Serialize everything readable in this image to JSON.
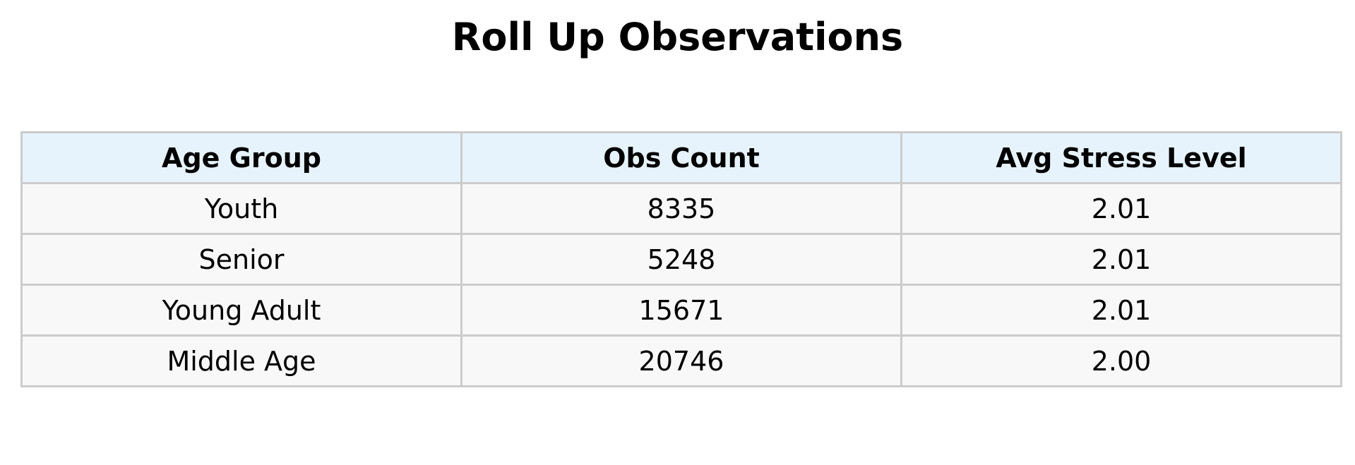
{
  "chart_data": {
    "type": "table",
    "title": "Roll Up Observations",
    "columns": [
      "Age Group",
      "Obs Count",
      "Avg Stress Level"
    ],
    "rows": [
      [
        "Youth",
        "8335",
        "2.01"
      ],
      [
        "Senior",
        "5248",
        "2.01"
      ],
      [
        "Young Adult",
        "15671",
        "2.01"
      ],
      [
        "Middle Age",
        "20746",
        "2.00"
      ]
    ]
  },
  "colors": {
    "header_background": "#e6f3fc",
    "row_background": "#f8f8f8",
    "border": "#cccccc"
  }
}
